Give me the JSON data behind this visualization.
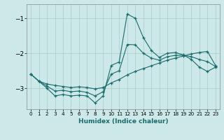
{
  "xlabel": "Humidex (Indice chaleur)",
  "bg_color": "#cce8e8",
  "grid_color": "#aacccc",
  "line_color": "#1a6b6b",
  "xlim": [
    -0.5,
    23.5
  ],
  "ylim": [
    -3.6,
    -0.6
  ],
  "yticks": [
    -3,
    -2,
    -1
  ],
  "xticks": [
    0,
    1,
    2,
    3,
    4,
    5,
    6,
    7,
    8,
    9,
    10,
    11,
    12,
    13,
    14,
    15,
    16,
    17,
    18,
    19,
    20,
    21,
    22,
    23
  ],
  "series1_x": [
    0,
    1,
    2,
    3,
    4,
    5,
    6,
    7,
    8,
    9,
    10,
    11,
    12,
    13,
    14,
    15,
    16,
    17,
    18,
    19,
    20,
    21,
    22,
    23
  ],
  "series1_y": [
    -2.6,
    -2.8,
    -3.0,
    -3.22,
    -3.18,
    -3.22,
    -3.2,
    -3.22,
    -3.42,
    -3.22,
    -2.35,
    -2.25,
    -0.88,
    -1.0,
    -1.55,
    -1.92,
    -2.12,
    -2.0,
    -1.98,
    -2.05,
    -2.18,
    -2.4,
    -2.52,
    -2.4
  ],
  "series2_x": [
    0,
    1,
    2,
    3,
    4,
    5,
    6,
    7,
    8,
    9,
    10,
    11,
    12,
    13,
    14,
    15,
    16,
    17,
    18,
    19,
    20,
    21,
    22,
    23
  ],
  "series2_y": [
    -2.6,
    -2.8,
    -2.88,
    -2.92,
    -2.95,
    -2.98,
    -2.96,
    -2.98,
    -3.02,
    -2.98,
    -2.85,
    -2.75,
    -2.62,
    -2.52,
    -2.44,
    -2.36,
    -2.28,
    -2.2,
    -2.14,
    -2.08,
    -2.02,
    -1.98,
    -1.95,
    -2.35
  ],
  "series3_x": [
    0,
    1,
    2,
    3,
    4,
    5,
    6,
    7,
    8,
    9,
    10,
    11,
    12,
    13,
    14,
    15,
    16,
    17,
    18,
    19,
    20,
    21,
    22,
    23
  ],
  "series3_y": [
    -2.6,
    -2.8,
    -2.94,
    -3.08,
    -3.06,
    -3.1,
    -3.08,
    -3.12,
    -3.22,
    -3.1,
    -2.6,
    -2.5,
    -1.75,
    -1.76,
    -2.0,
    -2.14,
    -2.2,
    -2.1,
    -2.06,
    -2.06,
    -2.1,
    -2.18,
    -2.24,
    -2.38
  ]
}
